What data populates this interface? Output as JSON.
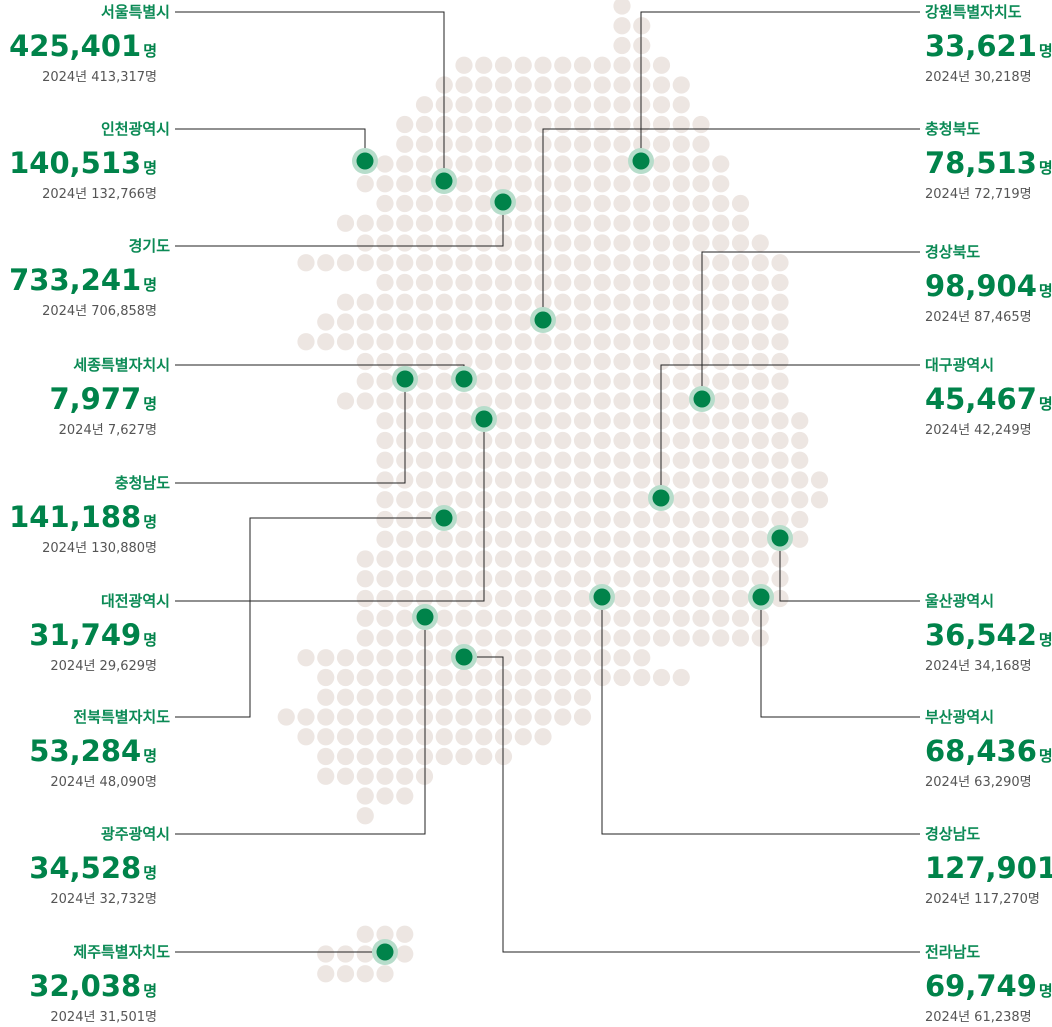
{
  "unit": "명",
  "left": [
    {
      "name": "서울특별시",
      "value": "425,401",
      "previous": "2024년 413,317명"
    },
    {
      "name": "인천광역시",
      "value": "140,513",
      "previous": "2024년 132,766명"
    },
    {
      "name": "경기도",
      "value": "733,241",
      "previous": "2024년 706,858명"
    },
    {
      "name": "세종특별자치시",
      "value": "7,977",
      "previous": "2024년 7,627명"
    },
    {
      "name": "충청남도",
      "value": "141,188",
      "previous": "2024년 130,880명"
    },
    {
      "name": "대전광역시",
      "value": "31,749",
      "previous": "2024년 29,629명"
    },
    {
      "name": "전북특별자치도",
      "value": "53,284",
      "previous": "2024년 48,090명"
    },
    {
      "name": "광주광역시",
      "value": "34,528",
      "previous": "2024년 32,732명"
    },
    {
      "name": "제주특별자치도",
      "value": "32,038",
      "previous": "2024년 31,501명"
    }
  ],
  "right": [
    {
      "name": "강원특별자치도",
      "value": "33,621",
      "previous": "2024년 30,218명"
    },
    {
      "name": "충청북도",
      "value": "78,513",
      "previous": "2024년 72,719명"
    },
    {
      "name": "경상북도",
      "value": "98,904",
      "previous": "2024년 87,465명"
    },
    {
      "name": "대구광역시",
      "value": "45,467",
      "previous": "2024년 42,249명"
    },
    {
      "name": "울산광역시",
      "value": "36,542",
      "previous": "2024년 34,168명"
    },
    {
      "name": "부산광역시",
      "value": "68,436",
      "previous": "2024년 63,290명"
    },
    {
      "name": "경상남도",
      "value": "127,901",
      "previous": "2024년 117,270명"
    },
    {
      "name": "전라남도",
      "value": "69,749",
      "previous": "2024년 61,238명"
    }
  ]
}
